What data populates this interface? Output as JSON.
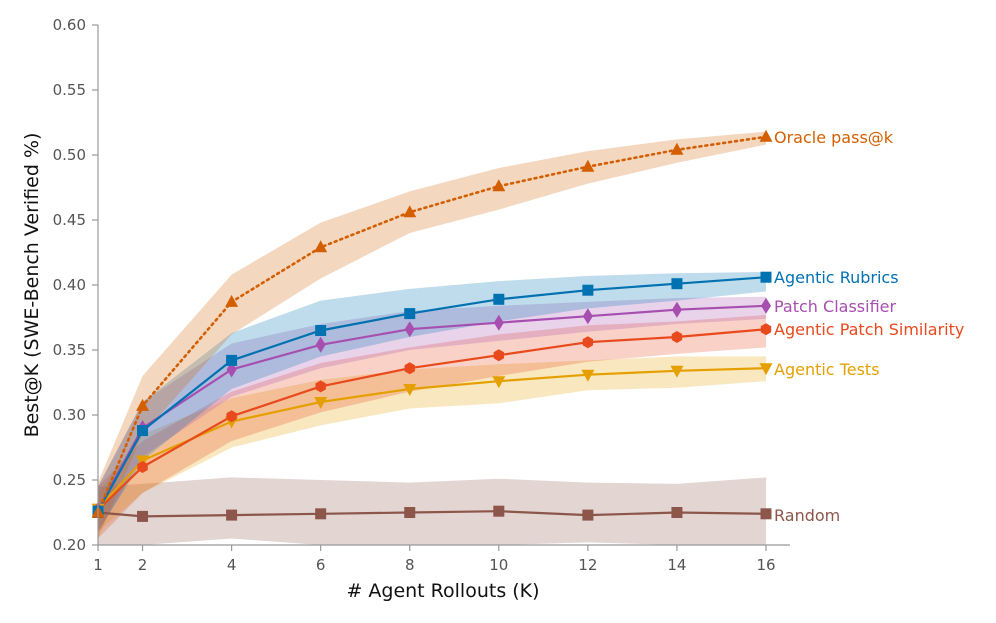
{
  "chart_data": {
    "type": "line",
    "xlabel": "# Agent Rollouts (K)",
    "ylabel": "Best@K (SWE-Bench Verified %)",
    "xlim": [
      1,
      16
    ],
    "ylim": [
      0.2,
      0.6
    ],
    "xticks": [
      1,
      2,
      4,
      6,
      8,
      10,
      12,
      14,
      16
    ],
    "yticks": [
      0.2,
      0.25,
      0.3,
      0.35,
      0.4,
      0.45,
      0.5,
      0.55,
      0.6
    ],
    "xtick_labels": [
      "1",
      "2",
      "4",
      "6",
      "8",
      "10",
      "12",
      "14",
      "16"
    ],
    "ytick_labels": [
      "0.20",
      "0.25",
      "0.30",
      "0.35",
      "0.40",
      "0.45",
      "0.50",
      "0.55",
      "0.60"
    ],
    "grid": false,
    "legend": "inline labels at line ends",
    "x": [
      1,
      2,
      4,
      6,
      8,
      10,
      12,
      14,
      16
    ],
    "series": [
      {
        "name": "Random",
        "color": "#8c564b",
        "marker": "square",
        "line_style": "solid",
        "values": [
          0.225,
          0.222,
          0.223,
          0.224,
          0.225,
          0.226,
          0.223,
          0.225,
          0.224
        ],
        "lower": [
          0.2,
          0.2,
          0.205,
          0.2,
          0.2,
          0.2,
          0.202,
          0.2,
          0.2
        ],
        "upper": [
          0.245,
          0.247,
          0.252,
          0.25,
          0.248,
          0.251,
          0.248,
          0.247,
          0.252
        ]
      },
      {
        "name": "Agentic Tests",
        "color": "#e5a000",
        "marker": "triangle-down",
        "line_style": "solid",
        "values": [
          0.228,
          0.265,
          0.295,
          0.31,
          0.32,
          0.326,
          0.331,
          0.334,
          0.336
        ],
        "lower": [
          0.21,
          0.24,
          0.275,
          0.292,
          0.305,
          0.309,
          0.319,
          0.321,
          0.326
        ],
        "upper": [
          0.24,
          0.285,
          0.313,
          0.327,
          0.335,
          0.339,
          0.342,
          0.345,
          0.345
        ]
      },
      {
        "name": "Agentic Patch Similarity",
        "color": "#e8491d",
        "marker": "hexagon",
        "line_style": "solid",
        "values": [
          0.227,
          0.26,
          0.299,
          0.322,
          0.336,
          0.346,
          0.356,
          0.36,
          0.366
        ],
        "lower": [
          0.205,
          0.24,
          0.28,
          0.302,
          0.318,
          0.33,
          0.341,
          0.347,
          0.352
        ],
        "upper": [
          0.245,
          0.28,
          0.318,
          0.34,
          0.352,
          0.362,
          0.369,
          0.372,
          0.377
        ]
      },
      {
        "name": "Patch Classifier",
        "color": "#a64fb0",
        "marker": "diamond",
        "line_style": "solid",
        "values": [
          0.227,
          0.29,
          0.335,
          0.354,
          0.366,
          0.371,
          0.376,
          0.381,
          0.384
        ],
        "lower": [
          0.21,
          0.268,
          0.314,
          0.336,
          0.35,
          0.357,
          0.364,
          0.37,
          0.374
        ],
        "upper": [
          0.245,
          0.31,
          0.355,
          0.37,
          0.38,
          0.384,
          0.387,
          0.39,
          0.391
        ]
      },
      {
        "name": "Agentic Rubrics",
        "color": "#0072b2",
        "marker": "square",
        "line_style": "solid",
        "values": [
          0.226,
          0.288,
          0.342,
          0.365,
          0.378,
          0.389,
          0.396,
          0.401,
          0.406
        ],
        "lower": [
          0.21,
          0.265,
          0.32,
          0.345,
          0.36,
          0.372,
          0.382,
          0.388,
          0.395
        ],
        "upper": [
          0.245,
          0.31,
          0.363,
          0.388,
          0.397,
          0.403,
          0.407,
          0.409,
          0.41
        ]
      },
      {
        "name": "Oracle pass@k",
        "color": "#d35f00",
        "marker": "triangle-up",
        "line_style": "dotted",
        "values": [
          0.225,
          0.307,
          0.387,
          0.429,
          0.456,
          0.476,
          0.491,
          0.504,
          0.514
        ],
        "lower": [
          0.205,
          0.285,
          0.362,
          0.405,
          0.44,
          0.458,
          0.478,
          0.494,
          0.508
        ],
        "upper": [
          0.248,
          0.33,
          0.408,
          0.448,
          0.472,
          0.49,
          0.503,
          0.512,
          0.518
        ]
      }
    ]
  }
}
